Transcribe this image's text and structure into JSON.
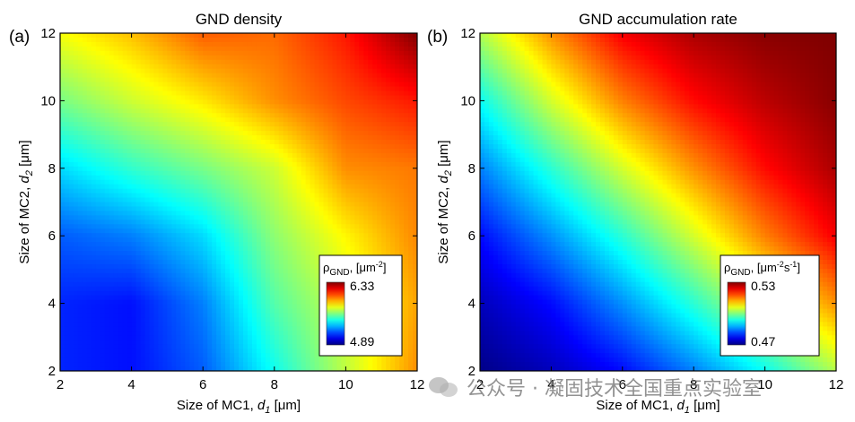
{
  "chart_data": [
    {
      "type": "heatmap",
      "panel_label": "(a)",
      "title": "GND density",
      "xlabel": {
        "prefix": "Size of MC1, ",
        "var": "d",
        "sub": "1",
        "suffix": " [μm]"
      },
      "ylabel": {
        "prefix": "Size of MC2, ",
        "var": "d",
        "sub": "2",
        "suffix": " [μm]"
      },
      "xlim": [
        2,
        12
      ],
      "ylim": [
        2,
        12
      ],
      "xticks": [
        2,
        4,
        6,
        8,
        10,
        12
      ],
      "yticks": [
        2,
        4,
        6,
        8,
        10,
        12
      ],
      "colormap": "jet",
      "colorbar": {
        "label_main": "ρ",
        "label_sub": "GND",
        "label_rest": ", [μm",
        "label_sup": "-2",
        "label_end": "]",
        "max_label": "6.33",
        "min_label": "4.89",
        "min": 4.89,
        "max": 6.33
      },
      "grid_x": [
        2,
        4,
        6,
        8,
        10,
        12
      ],
      "grid_y": [
        2,
        4,
        6,
        8,
        10,
        12
      ],
      "z": [
        [
          5.12,
          5.09,
          5.2,
          5.45,
          5.7,
          5.95
        ],
        [
          5.12,
          5.09,
          5.25,
          5.55,
          5.72,
          5.92
        ],
        [
          5.2,
          5.25,
          5.38,
          5.63,
          5.8,
          5.96
        ],
        [
          5.38,
          5.5,
          5.6,
          5.72,
          5.95,
          5.98
        ],
        [
          5.6,
          5.72,
          5.82,
          5.95,
          6.05,
          6.12
        ],
        [
          5.78,
          5.88,
          6.02,
          6.0,
          6.12,
          6.33
        ]
      ]
    },
    {
      "type": "heatmap",
      "panel_label": "(b)",
      "title": "GND accumulation rate",
      "xlabel": {
        "prefix": "Size of MC1, ",
        "var": "d",
        "sub": "1",
        "suffix": " [μm]"
      },
      "ylabel": {
        "prefix": "Size of MC2, ",
        "var": "d",
        "sub": "2",
        "suffix": " [μm]"
      },
      "xlim": [
        2,
        12
      ],
      "ylim": [
        2,
        12
      ],
      "xticks": [
        2,
        4,
        6,
        8,
        10,
        12
      ],
      "yticks": [
        2,
        4,
        6,
        8,
        10,
        12
      ],
      "colormap": "jet",
      "colorbar": {
        "label_main": "ρ",
        "label_sub": "GND",
        "label_rest": ", [μm",
        "label_sup": "-2",
        "label_mid": "s",
        "label_sup2": "-1",
        "label_end": "]",
        "max_label": "0.53",
        "min_label": "0.47",
        "min": 0.47,
        "max": 0.53
      },
      "grid_x": [
        2,
        4,
        6,
        8,
        10,
        12
      ],
      "grid_y": [
        2,
        4,
        6,
        8,
        10,
        12
      ],
      "z": [
        [
          0.4705,
          0.4735,
          0.478,
          0.485,
          0.493,
          0.503
        ],
        [
          0.4735,
          0.478,
          0.486,
          0.495,
          0.505,
          0.514
        ],
        [
          0.478,
          0.486,
          0.495,
          0.505,
          0.515,
          0.523
        ],
        [
          0.485,
          0.495,
          0.505,
          0.514,
          0.522,
          0.5275
        ],
        [
          0.493,
          0.505,
          0.515,
          0.522,
          0.5265,
          0.5295
        ],
        [
          0.503,
          0.514,
          0.523,
          0.5275,
          0.5295,
          0.53
        ]
      ]
    }
  ],
  "watermark": {
    "text": "公众号 · 凝固技术全国重点实验室",
    "icon": "wechat-icon"
  }
}
